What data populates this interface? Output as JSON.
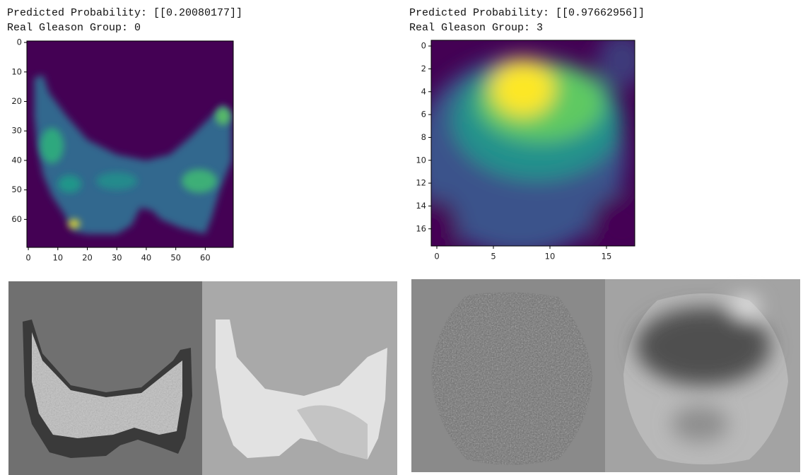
{
  "panels": [
    {
      "title_lines": [
        "Predicted Probability: [[0.20080177]]",
        "Real Gleason Group: 0"
      ],
      "heatmap": {
        "xlim": [
          -0.5,
          69.5
        ],
        "ylim": [
          69.5,
          -0.5
        ],
        "xticks": [
          0,
          10,
          20,
          30,
          40,
          50,
          60
        ],
        "yticks": [
          0,
          10,
          20,
          30,
          40,
          50,
          60
        ]
      }
    },
    {
      "title_lines": [
        "Predicted Probability: [[0.97662956]]",
        "Real Gleason Group: 3"
      ],
      "heatmap": {
        "xlim": [
          -0.5,
          17.5
        ],
        "ylim": [
          17.5,
          -0.5
        ],
        "xticks": [
          0,
          5,
          10,
          15
        ],
        "yticks": [
          0,
          2,
          4,
          6,
          8,
          10,
          12,
          14,
          16
        ]
      }
    }
  ]
}
